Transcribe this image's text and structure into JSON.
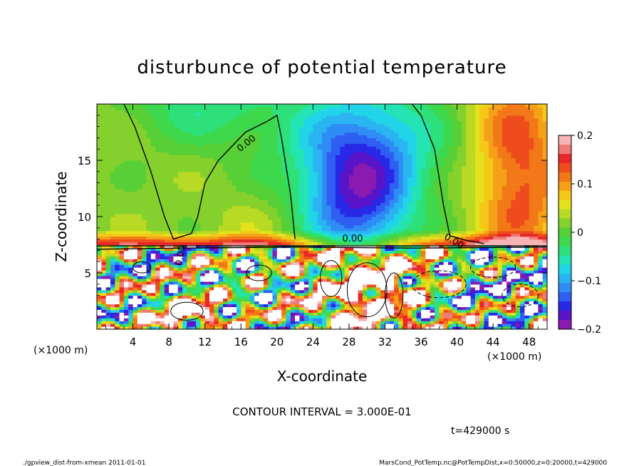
{
  "chart_data": {
    "type": "heatmap",
    "title": "disturbunce of potential temperature",
    "xlabel": "X-coordinate",
    "ylabel": "Z-coordinate",
    "x_unit": "(×1000 m)",
    "y_unit": "(×1000 m)",
    "xlim": [
      0,
      50
    ],
    "ylim": [
      0,
      20
    ],
    "x_ticks": [
      4,
      8,
      12,
      16,
      20,
      24,
      28,
      32,
      36,
      40,
      44,
      48
    ],
    "y_ticks": [
      5,
      10,
      15
    ],
    "colorbar": {
      "range": [
        -0.2,
        0.2
      ],
      "ticks": [
        {
          "value": 0.2,
          "label": "0.2"
        },
        {
          "value": 0.1,
          "label": "0.1"
        },
        {
          "value": 0,
          "label": "0"
        },
        {
          "value": -0.1,
          "label": "−0.1"
        },
        {
          "value": -0.2,
          "label": "−0.2"
        }
      ],
      "colors": [
        "#8a1ab0",
        "#5a14c8",
        "#2828e6",
        "#2f5ff2",
        "#2f8cf4",
        "#2ab4f2",
        "#22d4e8",
        "#24e4b4",
        "#2ee07a",
        "#3ed84c",
        "#56d036",
        "#84d02c",
        "#b8da24",
        "#e4e21c",
        "#f4c818",
        "#f4a018",
        "#f27818",
        "#ee4c1c",
        "#e62828",
        "#f07a7a",
        "#f6b4b4"
      ]
    },
    "contour_labels": [
      "0.00",
      "0.00",
      "0.00",
      "0.00"
    ],
    "contour_interval_text": "CONTOUR INTERVAL = 3.000E-01",
    "time_text": "t=429000 s",
    "values_grid_note": ""
  },
  "footer": {
    "left": "./gpview_dist-from-xmean  2011-01-01",
    "right": "MarsCond_PotTemp.nc@PotTempDist,x=0:50000,z=0:20000,t=429000"
  }
}
